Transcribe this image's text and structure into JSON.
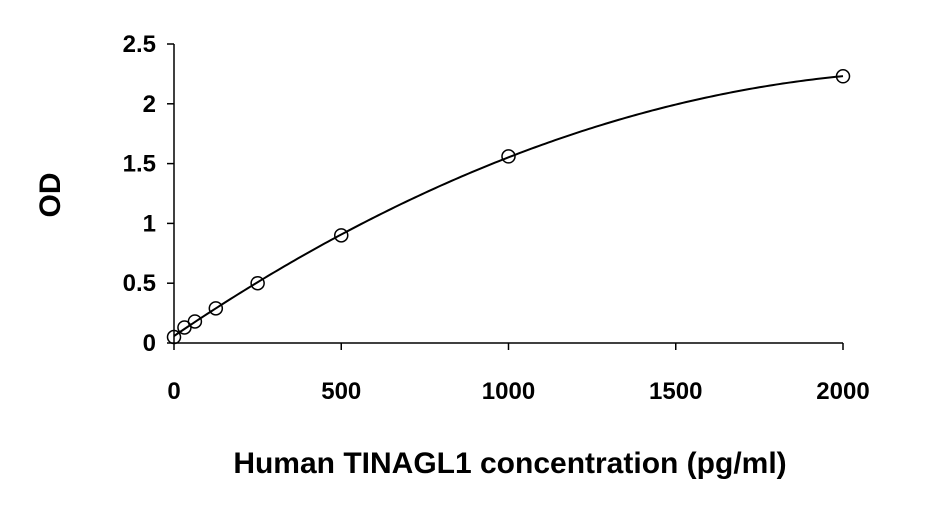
{
  "chart_data": {
    "type": "scatter",
    "title": "",
    "xlabel": "Human TINAGL1 concentration (pg/ml)",
    "ylabel": "OD",
    "xlim": [
      0,
      2000
    ],
    "ylim": [
      0,
      2.5
    ],
    "xticks": [
      "0",
      "500",
      "1000",
      "1500",
      "2000"
    ],
    "yticks": [
      "0",
      "0.5",
      "1",
      "1.5",
      "2",
      "2.5"
    ],
    "grid": false,
    "legend": "none",
    "series": [
      {
        "x": [
          0,
          31.25,
          62.5,
          125,
          250,
          500,
          1000,
          2000
        ],
        "y": [
          0.05,
          0.13,
          0.18,
          0.29,
          0.5,
          0.9,
          1.56,
          2.23
        ],
        "marker": "open-circle",
        "fit_line": "smooth",
        "color": "#000000"
      }
    ]
  }
}
